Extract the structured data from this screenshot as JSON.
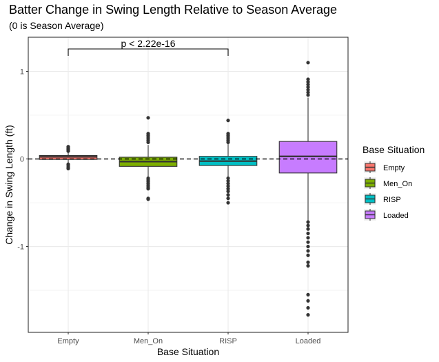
{
  "chart_data": {
    "type": "boxplot",
    "title": "Batter Change in Swing Length Relative to Season Average",
    "subtitle": "(0 is Season Average)",
    "xlabel": "Base Situation",
    "ylabel": "Change in Swing Length (ft)",
    "ylim": [
      -1.98,
      1.39
    ],
    "yticks": [
      -1,
      0,
      1
    ],
    "ytick_labels": [
      "-1",
      "0",
      "1"
    ],
    "grid": true,
    "reference_line": {
      "y": 0,
      "style": "dashed"
    },
    "annotation": {
      "text": "p < 2.22e-16",
      "from": "Empty",
      "to": "RISP"
    },
    "legend": {
      "title": "Base Situation",
      "position": "right",
      "items": [
        {
          "label": "Empty",
          "color": "#F8766D"
        },
        {
          "label": "Men_On",
          "color": "#7CAE00"
        },
        {
          "label": "RISP",
          "color": "#00BFC4"
        },
        {
          "label": "Loaded",
          "color": "#C77CFF"
        }
      ]
    },
    "categories": [
      "Empty",
      "Men_On",
      "RISP",
      "Loaded"
    ],
    "boxes": [
      {
        "category": "Empty",
        "color": "#F8766D",
        "q1": -0.005,
        "median": 0.025,
        "q3": 0.04,
        "whisker_low": -0.05,
        "whisker_high": 0.08,
        "outliers": [
          0.09,
          0.1,
          0.11,
          0.12,
          0.13,
          0.14,
          -0.06,
          -0.08,
          -0.1,
          -0.11
        ]
      },
      {
        "category": "Men_On",
        "color": "#7CAE00",
        "q1": -0.085,
        "median": -0.03,
        "q3": 0.02,
        "whisker_low": -0.2,
        "whisker_high": 0.16,
        "outliers": [
          0.19,
          0.21,
          0.23,
          0.25,
          0.27,
          0.29,
          0.47,
          -0.22,
          -0.24,
          -0.26,
          -0.28,
          -0.3,
          -0.32,
          -0.34,
          -0.45,
          -0.46
        ]
      },
      {
        "category": "RISP",
        "color": "#00BFC4",
        "q1": -0.075,
        "median": -0.025,
        "q3": 0.03,
        "whisker_low": -0.2,
        "whisker_high": 0.17,
        "outliers": [
          0.19,
          0.21,
          0.23,
          0.25,
          0.27,
          0.29,
          0.44,
          -0.22,
          -0.25,
          -0.28,
          -0.31,
          -0.34,
          -0.37,
          -0.41,
          -0.45,
          -0.5
        ]
      },
      {
        "category": "Loaded",
        "color": "#C77CFF",
        "q1": -0.16,
        "median": 0.03,
        "q3": 0.2,
        "whisker_low": -0.7,
        "whisker_high": 0.7,
        "outliers": [
          0.73,
          0.76,
          0.79,
          0.82,
          0.85,
          0.88,
          0.91,
          1.1,
          -0.72,
          -0.76,
          -0.8,
          -0.85,
          -0.9,
          -0.95,
          -1.0,
          -1.05,
          -1.1,
          -1.18,
          -1.22,
          -1.55,
          -1.62,
          -1.7,
          -1.78
        ]
      }
    ]
  }
}
